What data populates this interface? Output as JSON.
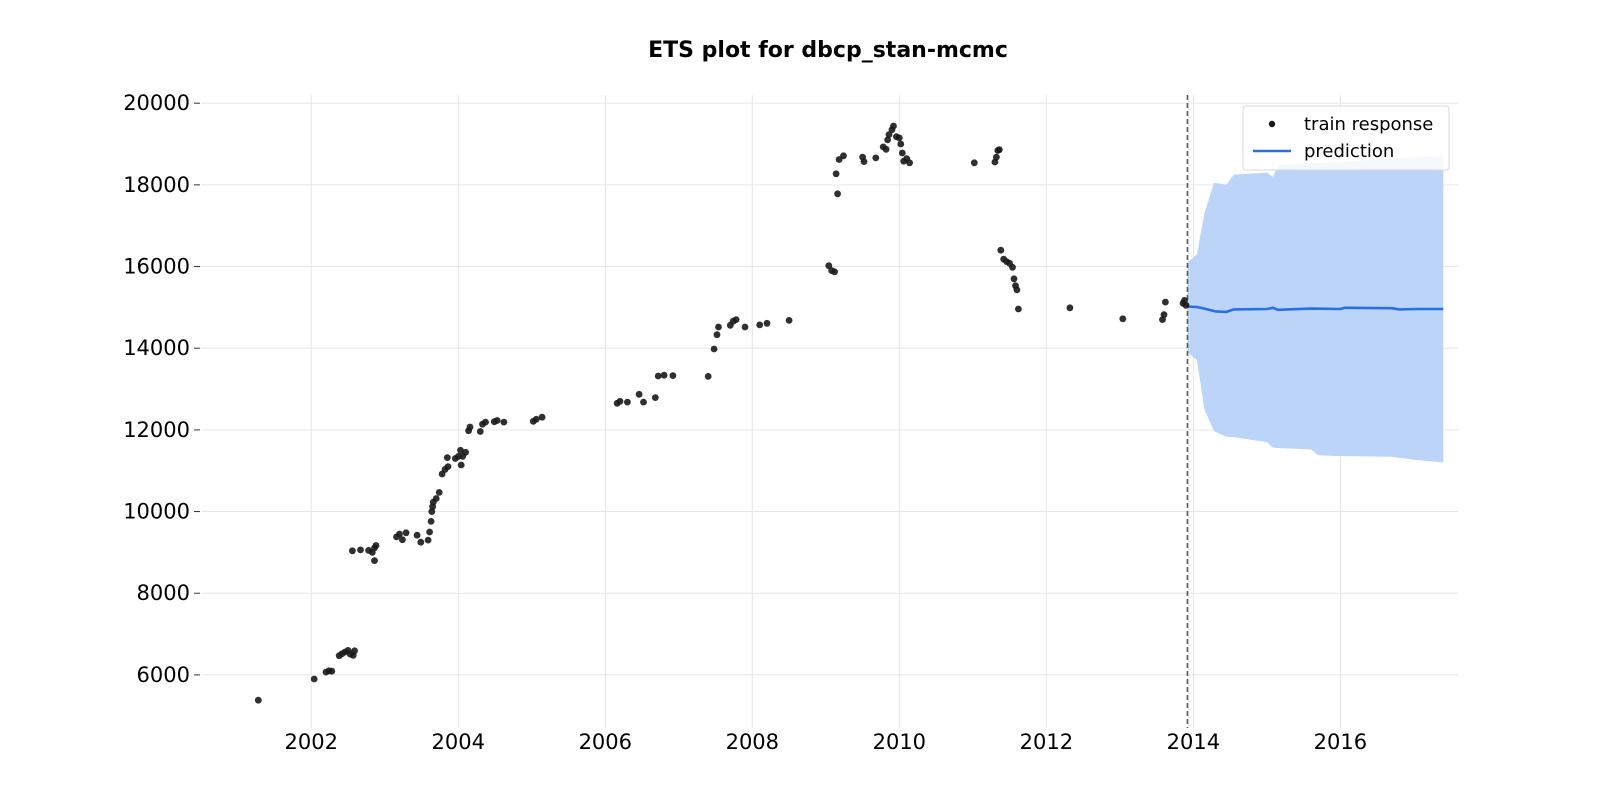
{
  "chart_data": {
    "type": "scatter",
    "title": "ETS plot for dbcp_stan-mcmc",
    "xlabel": "",
    "ylabel": "",
    "xlim": [
      2000.5,
      2017.6
    ],
    "ylim": [
      4700,
      20200
    ],
    "x_ticks": [
      "2002",
      "2004",
      "2006",
      "2008",
      "2010",
      "2012",
      "2014",
      "2016"
    ],
    "y_ticks": [
      "6000",
      "8000",
      "10000",
      "12000",
      "14000",
      "16000",
      "18000",
      "20000"
    ],
    "grid": true,
    "legend": {
      "placement": "top-right",
      "entries": [
        "train response",
        "prediction"
      ]
    },
    "cutoff_x": 2013.92,
    "colors": {
      "train": "#1a1a1a",
      "prediction": "#2a6ee8",
      "interval": "#bcd4f7",
      "cutoff": "#555555"
    },
    "series": [
      {
        "name": "train response",
        "type": "scatter",
        "points": [
          [
            2001.28,
            5380
          ],
          [
            2002.04,
            5900
          ],
          [
            2002.2,
            6070
          ],
          [
            2002.24,
            6100
          ],
          [
            2002.28,
            6090
          ],
          [
            2002.38,
            6470
          ],
          [
            2002.42,
            6520
          ],
          [
            2002.46,
            6560
          ],
          [
            2002.5,
            6600
          ],
          [
            2002.53,
            6510
          ],
          [
            2002.57,
            6480
          ],
          [
            2002.59,
            6590
          ],
          [
            2002.56,
            9040
          ],
          [
            2002.67,
            9060
          ],
          [
            2002.78,
            9050
          ],
          [
            2002.83,
            9000
          ],
          [
            2002.86,
            9110
          ],
          [
            2002.88,
            9170
          ],
          [
            2002.86,
            8800
          ],
          [
            2003.16,
            9380
          ],
          [
            2003.2,
            9450
          ],
          [
            2003.24,
            9310
          ],
          [
            2003.29,
            9480
          ],
          [
            2003.44,
            9420
          ],
          [
            2003.49,
            9250
          ],
          [
            2003.59,
            9300
          ],
          [
            2003.61,
            9500
          ],
          [
            2003.63,
            9760
          ],
          [
            2003.64,
            10000
          ],
          [
            2003.65,
            10120
          ],
          [
            2003.66,
            10230
          ],
          [
            2003.7,
            10320
          ],
          [
            2003.74,
            10470
          ],
          [
            2003.78,
            10920
          ],
          [
            2003.82,
            11030
          ],
          [
            2003.86,
            11100
          ],
          [
            2003.85,
            11320
          ],
          [
            2003.96,
            11300
          ],
          [
            2004.0,
            11350
          ],
          [
            2004.03,
            11500
          ],
          [
            2004.06,
            11350
          ],
          [
            2004.04,
            11140
          ],
          [
            2004.1,
            11450
          ],
          [
            2004.14,
            11980
          ],
          [
            2004.16,
            12070
          ],
          [
            2004.3,
            11960
          ],
          [
            2004.33,
            12140
          ],
          [
            2004.37,
            12190
          ],
          [
            2004.49,
            12200
          ],
          [
            2004.53,
            12230
          ],
          [
            2004.62,
            12190
          ],
          [
            2005.02,
            12210
          ],
          [
            2005.06,
            12260
          ],
          [
            2005.14,
            12310
          ],
          [
            2006.16,
            12650
          ],
          [
            2006.2,
            12700
          ],
          [
            2006.3,
            12680
          ],
          [
            2006.46,
            12870
          ],
          [
            2006.52,
            12680
          ],
          [
            2006.68,
            12790
          ],
          [
            2006.72,
            13320
          ],
          [
            2006.8,
            13340
          ],
          [
            2006.92,
            13330
          ],
          [
            2007.4,
            13310
          ],
          [
            2007.48,
            13980
          ],
          [
            2007.52,
            14330
          ],
          [
            2007.54,
            14520
          ],
          [
            2007.7,
            14560
          ],
          [
            2007.74,
            14660
          ],
          [
            2007.78,
            14700
          ],
          [
            2007.9,
            14520
          ],
          [
            2008.1,
            14570
          ],
          [
            2008.2,
            14610
          ],
          [
            2008.5,
            14680
          ],
          [
            2009.04,
            16020
          ],
          [
            2009.08,
            15900
          ],
          [
            2009.12,
            15870
          ],
          [
            2009.14,
            18270
          ],
          [
            2009.16,
            17780
          ],
          [
            2009.18,
            18620
          ],
          [
            2009.24,
            18710
          ],
          [
            2009.5,
            18680
          ],
          [
            2009.52,
            18570
          ],
          [
            2009.68,
            18660
          ],
          [
            2009.78,
            18930
          ],
          [
            2009.82,
            18870
          ],
          [
            2009.84,
            19100
          ],
          [
            2009.86,
            19230
          ],
          [
            2009.9,
            19350
          ],
          [
            2009.92,
            19440
          ],
          [
            2009.96,
            19180
          ],
          [
            2010.0,
            19150
          ],
          [
            2010.02,
            19000
          ],
          [
            2010.04,
            18780
          ],
          [
            2010.06,
            18580
          ],
          [
            2010.1,
            18640
          ],
          [
            2010.14,
            18540
          ],
          [
            2011.02,
            18540
          ],
          [
            2011.3,
            18560
          ],
          [
            2011.32,
            18680
          ],
          [
            2011.34,
            18840
          ],
          [
            2011.36,
            18860
          ],
          [
            2011.38,
            16400
          ],
          [
            2011.42,
            16180
          ],
          [
            2011.46,
            16120
          ],
          [
            2011.5,
            16080
          ],
          [
            2011.54,
            15980
          ],
          [
            2011.56,
            15700
          ],
          [
            2011.58,
            15530
          ],
          [
            2011.6,
            15430
          ],
          [
            2011.62,
            14960
          ],
          [
            2012.32,
            14990
          ],
          [
            2013.04,
            14720
          ],
          [
            2013.58,
            14700
          ],
          [
            2013.6,
            14820
          ],
          [
            2013.62,
            15130
          ],
          [
            2013.86,
            15100
          ],
          [
            2013.88,
            15170
          ],
          [
            2013.9,
            15050
          ]
        ]
      },
      {
        "name": "prediction",
        "type": "line",
        "points": [
          [
            2013.92,
            15020
          ],
          [
            2014.05,
            15010
          ],
          [
            2014.15,
            14970
          ],
          [
            2014.3,
            14900
          ],
          [
            2014.45,
            14890
          ],
          [
            2014.55,
            14950
          ],
          [
            2015.0,
            14960
          ],
          [
            2015.08,
            14990
          ],
          [
            2015.15,
            14940
          ],
          [
            2015.6,
            14970
          ],
          [
            2016.0,
            14960
          ],
          [
            2016.06,
            14990
          ],
          [
            2016.7,
            14980
          ],
          [
            2016.8,
            14950
          ],
          [
            2017.05,
            14960
          ],
          [
            2017.4,
            14960
          ]
        ],
        "upper": [
          [
            2013.92,
            16100
          ],
          [
            2014.05,
            16300
          ],
          [
            2014.15,
            17300
          ],
          [
            2014.28,
            18050
          ],
          [
            2014.45,
            18000
          ],
          [
            2014.55,
            18250
          ],
          [
            2015.0,
            18300
          ],
          [
            2015.08,
            18200
          ],
          [
            2015.16,
            18480
          ],
          [
            2015.6,
            18530
          ],
          [
            2016.0,
            18560
          ],
          [
            2016.7,
            18650
          ],
          [
            2017.4,
            18700
          ]
        ],
        "lower": [
          [
            2013.92,
            13900
          ],
          [
            2014.05,
            13700
          ],
          [
            2014.15,
            12500
          ],
          [
            2014.28,
            11970
          ],
          [
            2014.45,
            11830
          ],
          [
            2014.55,
            11820
          ],
          [
            2015.0,
            11700
          ],
          [
            2015.08,
            11560
          ],
          [
            2015.6,
            11520
          ],
          [
            2015.7,
            11380
          ],
          [
            2016.0,
            11360
          ],
          [
            2016.7,
            11340
          ],
          [
            2017.05,
            11260
          ],
          [
            2017.4,
            11200
          ]
        ]
      }
    ]
  }
}
